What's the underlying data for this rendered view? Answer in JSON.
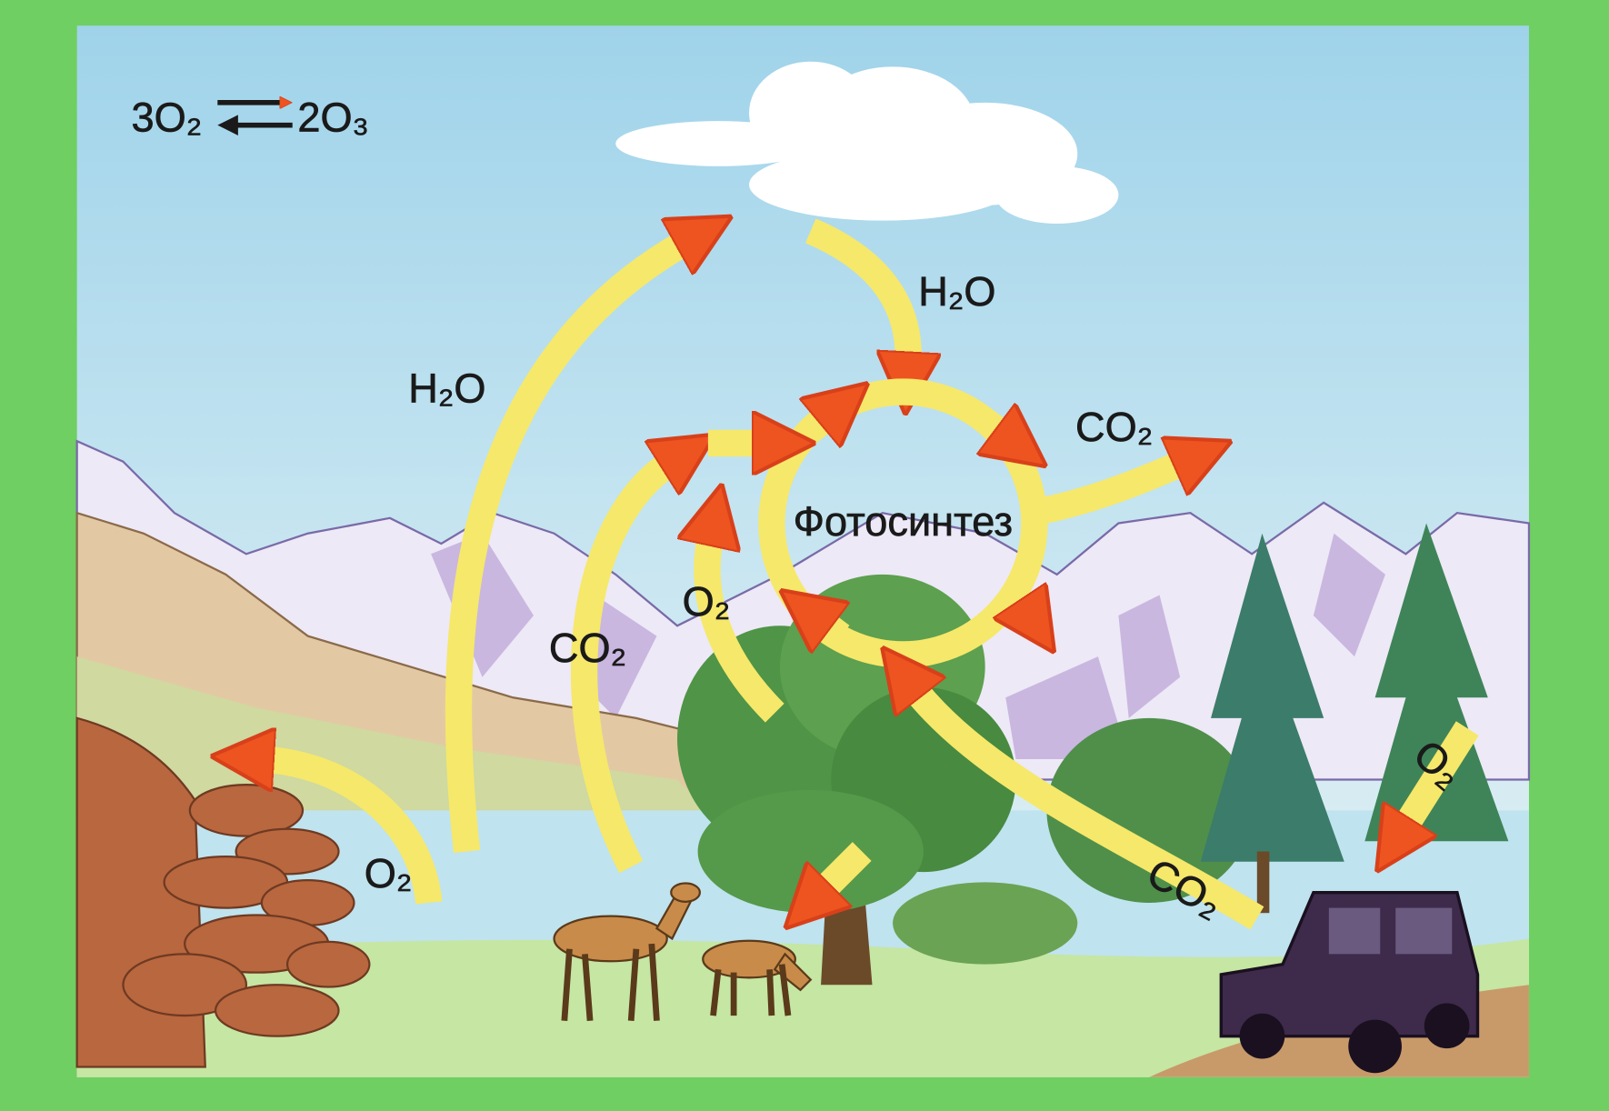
{
  "formula": {
    "left": "3O₂",
    "right": "2O₃"
  },
  "center": "Фотосинтез",
  "labels": [
    "H₂O",
    "H₂O",
    "CO₂",
    "O₂",
    "CO₂",
    "O₂",
    "CO₂",
    "O₂"
  ]
}
